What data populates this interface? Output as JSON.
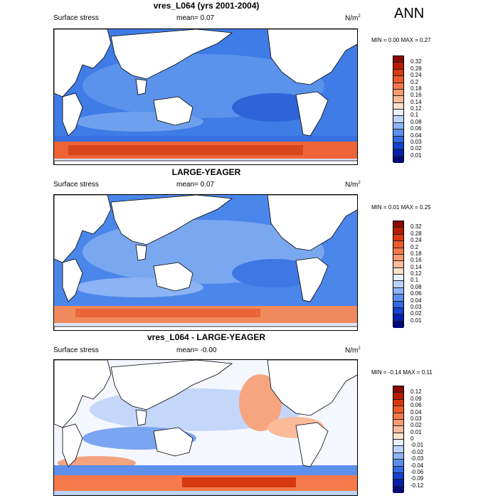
{
  "annotation": "ANN",
  "panels": [
    {
      "title": "vres_L064 (yrs 2001-2004)",
      "left_label": "Surface stress",
      "mean_label": "mean=  0.07",
      "units": "N/m",
      "units_sup": "2",
      "minmax": "MIN =   0.00 MAX =   0.27",
      "colorbar_ticks": [
        "0.32",
        "0.28",
        "0.24",
        "0.2",
        "0.18",
        "0.16",
        "0.14",
        "0.12",
        "0.1",
        "0.08",
        "0.06",
        "0.04",
        "0.03",
        "0.02",
        "0.01"
      ],
      "colorbar_colors": [
        "#8b0a00",
        "#b81c00",
        "#d83a10",
        "#ec5a2a",
        "#f47a4c",
        "#f89a72",
        "#fbbb9b",
        "#fde0ca",
        "#e6efff",
        "#bcd3fb",
        "#8cb3f4",
        "#5d8fec",
        "#3269e2",
        "#1242d1",
        "#0521aa",
        "#000a7a"
      ]
    },
    {
      "title": "LARGE-YEAGER",
      "left_label": "Surface stress",
      "mean_label": "mean=  0.07",
      "units": "N/m",
      "units_sup": "2",
      "minmax": "MIN =   0.01 MAX =   0.25",
      "colorbar_ticks": [
        "0.32",
        "0.28",
        "0.24",
        "0.2",
        "0.18",
        "0.16",
        "0.14",
        "0.12",
        "0.1",
        "0.08",
        "0.06",
        "0.04",
        "0.03",
        "0.02",
        "0.01"
      ],
      "colorbar_colors": [
        "#8b0a00",
        "#b81c00",
        "#d83a10",
        "#ec5a2a",
        "#f47a4c",
        "#f89a72",
        "#fbbb9b",
        "#fde0ca",
        "#e6efff",
        "#bcd3fb",
        "#8cb3f4",
        "#5d8fec",
        "#3269e2",
        "#1242d1",
        "#0521aa",
        "#000a7a"
      ]
    },
    {
      "title": "vres_L064 - LARGE-YEAGER",
      "left_label": "Surface stress",
      "mean_label": "mean= -0.00",
      "units": "N/m",
      "units_sup": "2",
      "minmax": "MIN =  -0.14 MAX =   0.11",
      "colorbar_ticks": [
        "0.12",
        "0.09",
        "0.06",
        "0.04",
        "0.03",
        "0.02",
        "0.01",
        "0",
        "-0.01",
        "-0.02",
        "-0.03",
        "-0.04",
        "-0.06",
        "-0.09",
        "-0.12"
      ],
      "colorbar_colors": [
        "#8b0a00",
        "#b81c00",
        "#d83a10",
        "#ec5a2a",
        "#f47a4c",
        "#f89a72",
        "#fbbb9b",
        "#fde0ca",
        "#e6efff",
        "#bcd3fb",
        "#8cb3f4",
        "#5d8fec",
        "#3269e2",
        "#1242d1",
        "#0521aa",
        "#000a7a"
      ]
    }
  ]
}
